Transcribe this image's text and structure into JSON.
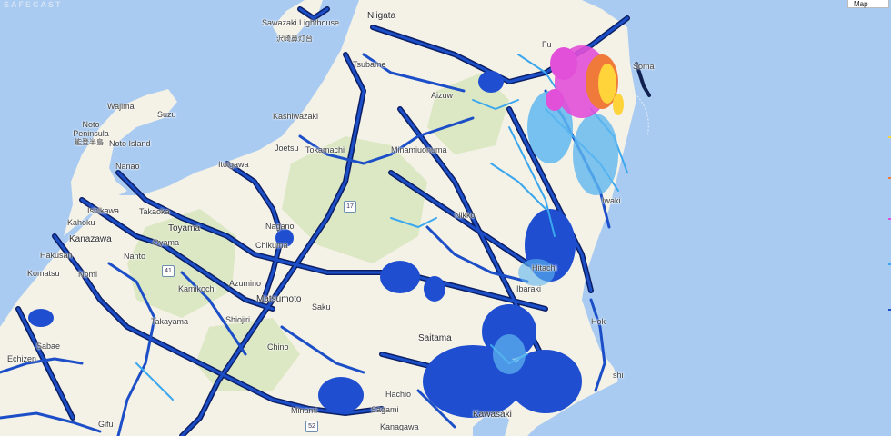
{
  "watermark": "SAFECAST",
  "map_type_label": "Map",
  "colors": {
    "sea": "#a9cbf2",
    "land": "#f4f1e6",
    "forest": "#d4e4b8",
    "road_low": "#1c4fc7",
    "road_outline": "#0b1e63",
    "road_mid": "#3ba7ee",
    "road_high": "#e24fd8",
    "road_peak": "#ffd43a"
  },
  "places": {
    "sawazaki": "Sawazaki Lighthouse",
    "sawazaki_jp": "沢崎鼻灯台",
    "niigata": "Niigata",
    "tsubame": "Tsubame",
    "kashiwazaki": "Kashiwazaki",
    "aizu": "Aizuw",
    "joetsu": "Joetsu",
    "tokamachi": "Tokamachi",
    "minamiuonuma": "Minamiuonuma",
    "itoigawa": "Itoigawa",
    "wajima": "Wajima",
    "suzu": "Suzu",
    "noto": "Noto Peninsula",
    "noto_jp": "能登半島",
    "noto_island": "Noto Island",
    "nanao": "Nanao",
    "takaoka": "Takaoka",
    "toyama": "Toyama",
    "oyama": "Oyama",
    "ishikawa": "Ishikawa",
    "kahoku": "Kahoku",
    "kanazawa": "Kanazawa",
    "hakusan": "Hakusan",
    "komatsu": "Komatsu",
    "nomi": "Nomi",
    "nanto": "Nanto",
    "kamikochi": "Kamikochi",
    "takayama": "Takayama",
    "matsumoto": "Matsumoto",
    "azumino": "Azumino",
    "nagano": "Nagano",
    "chikuma": "Chikuma",
    "saku": "Saku",
    "shiojiri": "Shiojiri",
    "chino": "Chino",
    "sabae": "Sabae",
    "echizen": "Echizen",
    "saitama": "Saitama",
    "hachioji": "Hachio",
    "sagamihara": "Sagami",
    "kanagawa": "Kanagawa",
    "kawasaki": "Kawasaki",
    "minami": "Minami",
    "gifu": "Gifu",
    "hitachi": "Hitachi",
    "ibaraki": "Ibaraki",
    "nikko": "Nikko",
    "iwaki": "Iwaki",
    "fukushima": "Fu",
    "soma": "Soma",
    "hok": "Hok",
    "shi": "shi",
    "takayama_jp": "Takayama"
  },
  "route_shields": {
    "r17": "17",
    "r41": "41",
    "r52": "52"
  }
}
